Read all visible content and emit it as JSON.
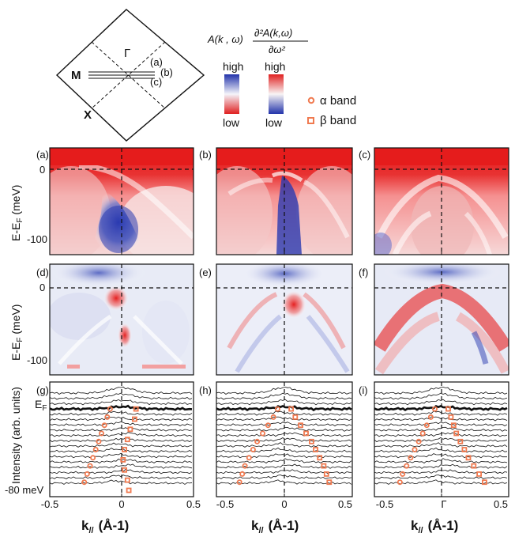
{
  "legend": {
    "formula_left": "A(k , ω)",
    "formula_num": "∂²A(k,ω)",
    "formula_den": "∂ω²",
    "scale_high": "high",
    "scale_low": "low",
    "alpha_label": "α band",
    "beta_label": "β band",
    "colors": {
      "high_left": "#2233aa",
      "low_left": "#e02020",
      "high_right": "#e02020",
      "low_right": "#2233aa",
      "marker": "#f07a50"
    }
  },
  "bz": {
    "gamma": "Γ",
    "M": "M",
    "X": "X",
    "cut_a": "(a)",
    "cut_b": "(b)",
    "cut_c": "(c)"
  },
  "axes": {
    "ylabel_top": "E-E",
    "ylabel_sub": "F",
    "ylabel_unit": " (meV)",
    "ylabel_intensity": "Intensity (arb. units)",
    "ef_label": "E",
    "ef_sub": "F",
    "bottom_label": "-80 meV",
    "xlabel_k": "k",
    "xlabel_sub": "//",
    "xlabel_unit": "(Å-1)",
    "yticks": [
      "0",
      "-100"
    ],
    "xticks_ab": [
      "-0.5",
      "0",
      "0.5"
    ],
    "xticks_c": [
      "-0.5",
      "Γ",
      "0.5"
    ]
  },
  "panels": [
    "(a)",
    "(b)",
    "(c)",
    "(d)",
    "(e)",
    "(f)",
    "(g)",
    "(h)",
    "(i)"
  ],
  "chart_data": [
    {
      "type": "heatmap",
      "panel": "(a)",
      "xlim": [
        -0.5,
        0.5
      ],
      "ylim": [
        -120,
        20
      ],
      "description_axis": "k vs E-EF"
    },
    {
      "type": "heatmap",
      "panel": "(b)",
      "xlim": [
        -0.5,
        0.5
      ],
      "ylim": [
        -120,
        20
      ]
    },
    {
      "type": "heatmap",
      "panel": "(c)",
      "xlim": [
        -0.5,
        0.5
      ],
      "ylim": [
        -120,
        20
      ]
    },
    {
      "type": "heatmap",
      "panel": "(d)",
      "xlim": [
        -0.5,
        0.5
      ],
      "ylim": [
        -120,
        20
      ]
    },
    {
      "type": "heatmap",
      "panel": "(e)",
      "xlim": [
        -0.5,
        0.5
      ],
      "ylim": [
        -120,
        20
      ]
    },
    {
      "type": "heatmap",
      "panel": "(f)",
      "xlim": [
        -0.5,
        0.5
      ],
      "ylim": [
        -120,
        20
      ]
    },
    {
      "type": "line",
      "panel": "(g)",
      "xlim": [
        -0.5,
        0.5
      ],
      "alpha_band": [
        [
          -0.08,
          0
        ],
        [
          -0.1,
          -8
        ],
        [
          -0.12,
          -16
        ],
        [
          -0.14,
          -24
        ],
        [
          -0.16,
          -32
        ],
        [
          -0.18,
          -40
        ],
        [
          -0.2,
          -48
        ],
        [
          -0.22,
          -56
        ],
        [
          -0.24,
          -64
        ],
        [
          -0.26,
          -72
        ]
      ],
      "beta_band": [
        [
          0.1,
          0
        ],
        [
          0.09,
          -10
        ],
        [
          0.06,
          -20
        ],
        [
          0.04,
          -30
        ],
        [
          0.02,
          -40
        ],
        [
          0.01,
          -50
        ],
        [
          0.02,
          -60
        ],
        [
          0.04,
          -70
        ],
        [
          0.05,
          -80
        ]
      ]
    },
    {
      "type": "line",
      "panel": "(h)",
      "xlim": [
        -0.5,
        0.5
      ],
      "alpha_band": [
        [
          -0.05,
          0
        ],
        [
          -0.08,
          -8
        ],
        [
          -0.12,
          -16
        ],
        [
          -0.16,
          -24
        ],
        [
          -0.2,
          -32
        ],
        [
          -0.23,
          -40
        ],
        [
          -0.26,
          -48
        ],
        [
          -0.29,
          -56
        ],
        [
          -0.31,
          -64
        ],
        [
          -0.33,
          -72
        ]
      ],
      "beta_band": [
        [
          0.05,
          0
        ],
        [
          0.08,
          -8
        ],
        [
          0.12,
          -16
        ],
        [
          0.16,
          -24
        ],
        [
          0.2,
          -32
        ],
        [
          0.23,
          -40
        ],
        [
          0.26,
          -48
        ],
        [
          0.29,
          -56
        ],
        [
          0.31,
          -64
        ],
        [
          0.33,
          -72
        ]
      ]
    },
    {
      "type": "line",
      "panel": "(i)",
      "xlim": [
        -0.5,
        0.5
      ],
      "alpha_band": [
        [
          -0.05,
          0
        ],
        [
          -0.08,
          -8
        ],
        [
          -0.11,
          -16
        ],
        [
          -0.14,
          -24
        ],
        [
          -0.17,
          -32
        ],
        [
          -0.2,
          -40
        ],
        [
          -0.23,
          -48
        ],
        [
          -0.26,
          -56
        ],
        [
          -0.29,
          -64
        ],
        [
          -0.31,
          -72
        ]
      ],
      "beta_band": [
        [
          0.05,
          0
        ],
        [
          0.07,
          -8
        ],
        [
          0.09,
          -16
        ],
        [
          0.11,
          -24
        ],
        [
          0.14,
          -32
        ],
        [
          0.17,
          -40
        ],
        [
          0.2,
          -48
        ],
        [
          0.24,
          -56
        ],
        [
          0.28,
          -64
        ],
        [
          0.32,
          -72
        ]
      ]
    }
  ]
}
